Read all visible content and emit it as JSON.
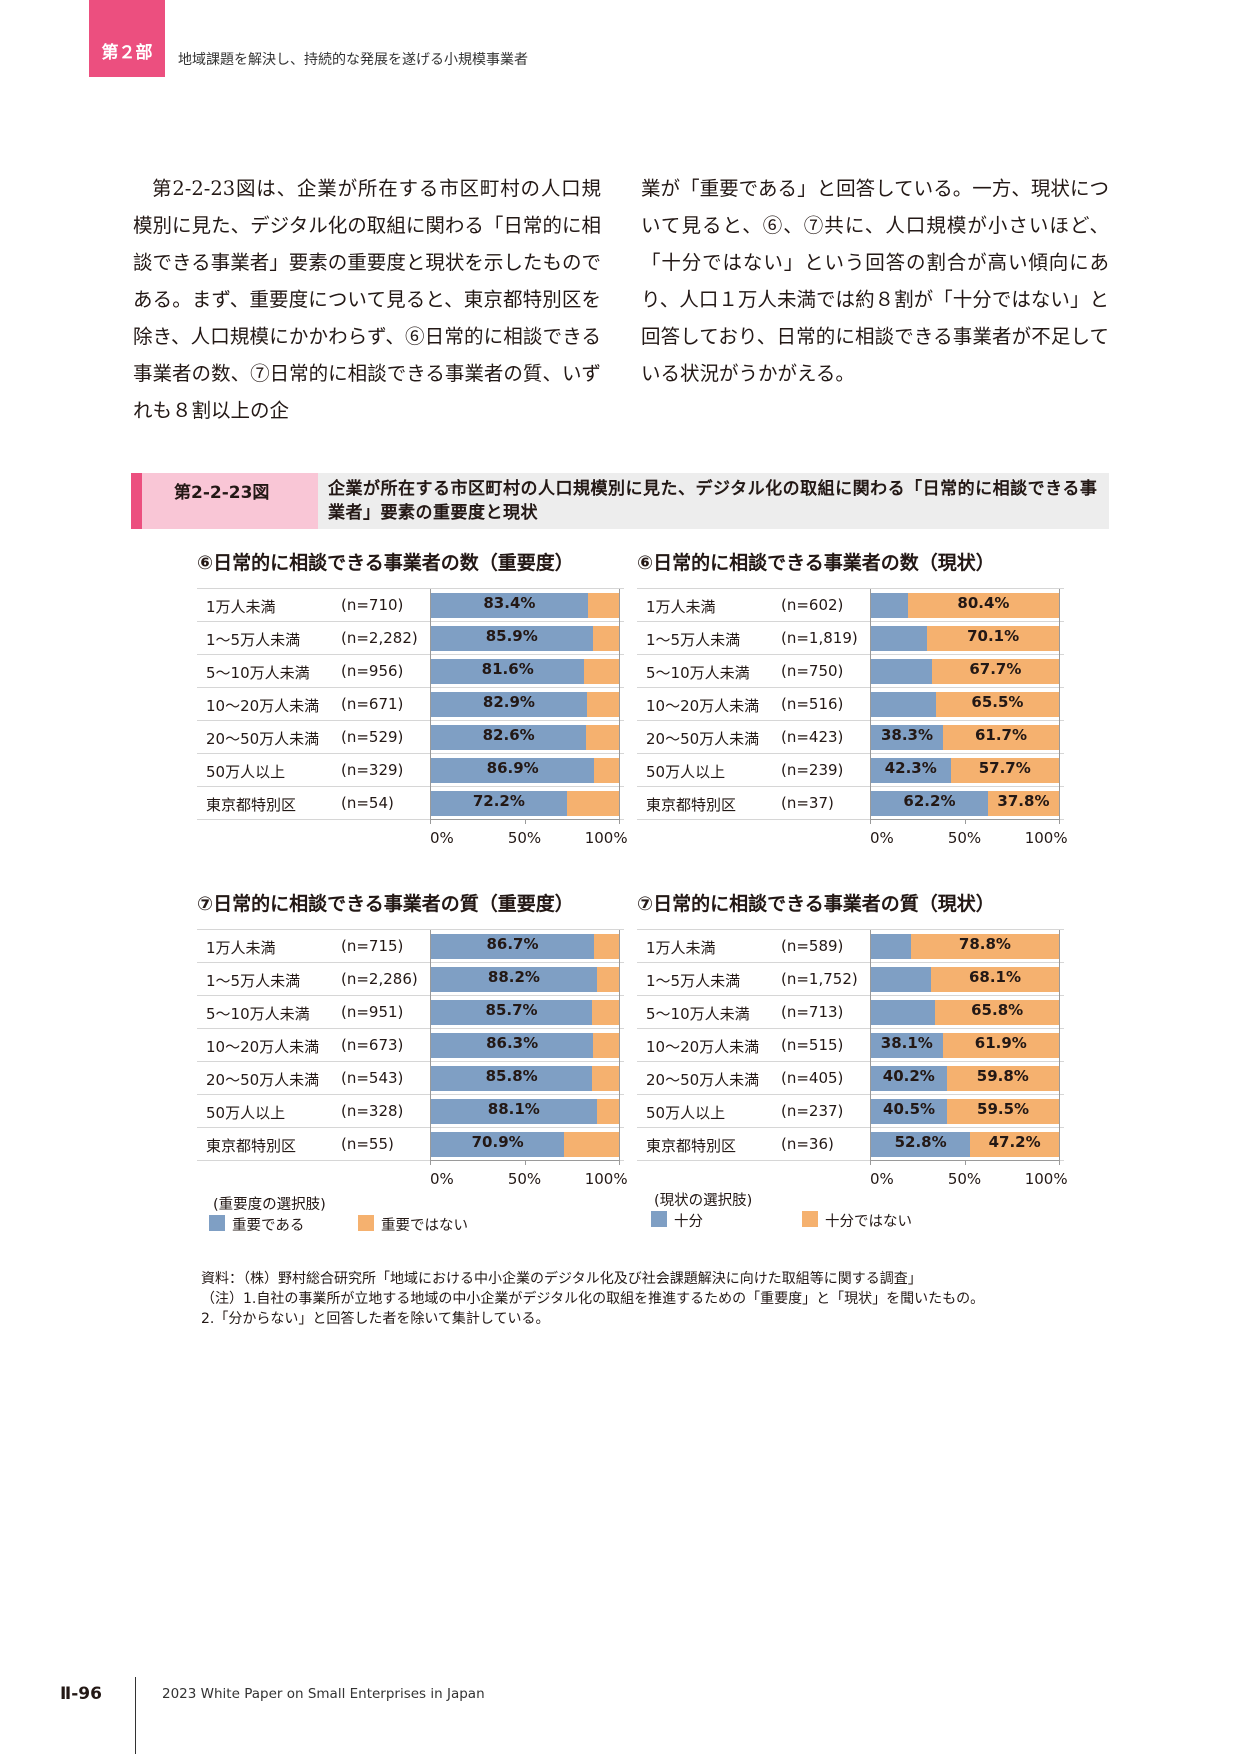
{
  "header": {
    "part_label": "第２部",
    "part_title": "地域課題を解決し、持続的な発展を遂げる小規模事業者"
  },
  "body_text": {
    "left": "第2-2-23図は、企業が所在する市区町村の人口規模別に見た、デジタル化の取組に関わる「日常的に相談できる事業者」要素の重要度と現状を示したものである。まず、重要度について見ると、東京都特別区を除き、人口規模にかかわらず、⑥日常的に相談できる事業者の数、⑦日常的に相談できる事業者の質、いずれも８割以上の企",
    "right": "業が「重要である」と回答している。一方、現状について見ると、⑥、⑦共に、人口規模が小さいほど、「十分ではない」という回答の割合が高い傾向にあり、人口１万人未満では約８割が「十分ではない」と回答しており、日常的に相談できる事業者が不足している状況がうかがえる。"
  },
  "figure": {
    "label": "第2-2-23図",
    "title": "企業が所在する市区町村の人口規模別に見た、デジタル化の取組に関わる「日常的に相談できる事業者」要素の重要度と現状"
  },
  "colors": {
    "series_a": "#7f9fc4",
    "series_b": "#f5b16f",
    "accent_pink": "#ec4f7f"
  },
  "chart_data": [
    {
      "type": "bar",
      "orientation": "horizontal-stacked-100",
      "title": "⑥日常的に相談できる事業者の数（重要度）",
      "categories": [
        "1万人未満",
        "1～5万人未満",
        "5～10万人未満",
        "10～20万人未満",
        "20～50万人未満",
        "50万人以上",
        "東京都特別区"
      ],
      "n_labels": [
        "(n=710)",
        "(n=2,282)",
        "(n=956)",
        "(n=671)",
        "(n=529)",
        "(n=329)",
        "(n=54)"
      ],
      "series": [
        {
          "name": "重要である",
          "values": [
            83.4,
            85.9,
            81.6,
            82.9,
            82.6,
            86.9,
            72.2
          ],
          "labels": [
            "83.4%",
            "85.9%",
            "81.6%",
            "82.9%",
            "82.6%",
            "86.9%",
            "72.2%"
          ]
        },
        {
          "name": "重要ではない",
          "values": [
            16.6,
            14.1,
            18.4,
            17.1,
            17.4,
            13.1,
            27.8
          ],
          "labels": [
            "",
            "",
            "",
            "",
            "",
            "",
            ""
          ]
        }
      ],
      "xticks": [
        "0%",
        "50%",
        "100%"
      ],
      "xlim": [
        0,
        100
      ]
    },
    {
      "type": "bar",
      "orientation": "horizontal-stacked-100",
      "title": "⑥日常的に相談できる事業者の数（現状）",
      "categories": [
        "1万人未満",
        "1～5万人未満",
        "5～10万人未満",
        "10～20万人未満",
        "20～50万人未満",
        "50万人以上",
        "東京都特別区"
      ],
      "n_labels": [
        "(n=602)",
        "(n=1,819)",
        "(n=750)",
        "(n=516)",
        "(n=423)",
        "(n=239)",
        "(n=37)"
      ],
      "series": [
        {
          "name": "十分",
          "values": [
            19.6,
            29.9,
            32.3,
            34.5,
            38.3,
            42.3,
            62.2
          ],
          "labels": [
            "",
            "",
            "",
            "",
            "38.3%",
            "42.3%",
            "62.2%"
          ]
        },
        {
          "name": "十分ではない",
          "values": [
            80.4,
            70.1,
            67.7,
            65.5,
            61.7,
            57.7,
            37.8
          ],
          "labels": [
            "80.4%",
            "70.1%",
            "67.7%",
            "65.5%",
            "61.7%",
            "57.7%",
            "37.8%"
          ]
        }
      ],
      "xticks": [
        "0%",
        "50%",
        "100%"
      ],
      "xlim": [
        0,
        100
      ]
    },
    {
      "type": "bar",
      "orientation": "horizontal-stacked-100",
      "title": "⑦日常的に相談できる事業者の質（重要度）",
      "categories": [
        "1万人未満",
        "1～5万人未満",
        "5～10万人未満",
        "10～20万人未満",
        "20～50万人未満",
        "50万人以上",
        "東京都特別区"
      ],
      "n_labels": [
        "(n=715)",
        "(n=2,286)",
        "(n=951)",
        "(n=673)",
        "(n=543)",
        "(n=328)",
        "(n=55)"
      ],
      "series": [
        {
          "name": "重要である",
          "values": [
            86.7,
            88.2,
            85.7,
            86.3,
            85.8,
            88.1,
            70.9
          ],
          "labels": [
            "86.7%",
            "88.2%",
            "85.7%",
            "86.3%",
            "85.8%",
            "88.1%",
            "70.9%"
          ]
        },
        {
          "name": "重要ではない",
          "values": [
            13.3,
            11.8,
            14.3,
            13.7,
            14.2,
            11.9,
            29.1
          ],
          "labels": [
            "",
            "",
            "",
            "",
            "",
            "",
            ""
          ]
        }
      ],
      "xticks": [
        "0%",
        "50%",
        "100%"
      ],
      "xlim": [
        0,
        100
      ]
    },
    {
      "type": "bar",
      "orientation": "horizontal-stacked-100",
      "title": "⑦日常的に相談できる事業者の質（現状）",
      "categories": [
        "1万人未満",
        "1～5万人未満",
        "5～10万人未満",
        "10～20万人未満",
        "20～50万人未満",
        "50万人以上",
        "東京都特別区"
      ],
      "n_labels": [
        "(n=589)",
        "(n=1,752)",
        "(n=713)",
        "(n=515)",
        "(n=405)",
        "(n=237)",
        "(n=36)"
      ],
      "series": [
        {
          "name": "十分",
          "values": [
            21.2,
            31.9,
            34.2,
            38.1,
            40.2,
            40.5,
            52.8
          ],
          "labels": [
            "",
            "",
            "",
            "38.1%",
            "40.2%",
            "40.5%",
            "52.8%"
          ]
        },
        {
          "name": "十分ではない",
          "values": [
            78.8,
            68.1,
            65.8,
            61.9,
            59.8,
            59.5,
            47.2
          ],
          "labels": [
            "78.8%",
            "68.1%",
            "65.8%",
            "61.9%",
            "59.8%",
            "59.5%",
            "47.2%"
          ]
        }
      ],
      "xticks": [
        "0%",
        "50%",
        "100%"
      ],
      "xlim": [
        0,
        100
      ]
    }
  ],
  "legends": {
    "importance": {
      "caption": "(重要度の選択肢)",
      "items": [
        "重要である",
        "重要ではない"
      ]
    },
    "status": {
      "caption": "(現状の選択肢)",
      "items": [
        "十分",
        "十分ではない"
      ]
    }
  },
  "source": {
    "line1": "資料：（株）野村総合研究所「地域における中小企業のデジタル化及び社会課題解決に向けた取組等に関する調査」",
    "line2": "（注）1.自社の事業所が立地する地域の中小企業がデジタル化の取組を推進するための「重要度」と「現状」を聞いたもの。",
    "line3": "2.「分からない」と回答した者を除いて集計している。"
  },
  "footer": {
    "page": "Ⅱ-96",
    "title": "2023 White Paper on Small Enterprises in Japan"
  }
}
